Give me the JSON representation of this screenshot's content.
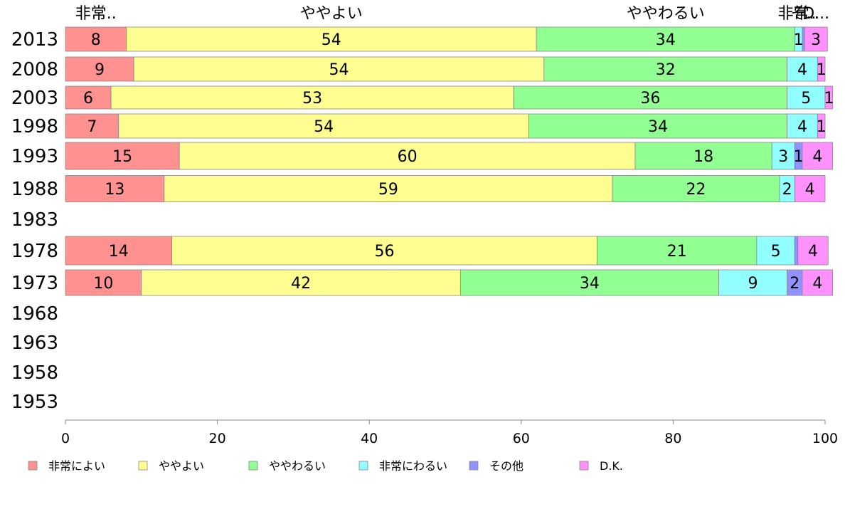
{
  "chart_data": {
    "type": "bar",
    "orientation": "horizontal",
    "stacked": true,
    "categories": [
      "2013",
      "2008",
      "2003",
      "1998",
      "1993",
      "1988",
      "1983",
      "1978",
      "1973",
      "1968",
      "1963",
      "1958",
      "1953"
    ],
    "series": [
      {
        "name": "非常によい",
        "color": "#ff9191",
        "values": [
          8,
          9,
          6,
          7,
          15,
          13,
          null,
          14,
          10,
          null,
          null,
          null,
          null
        ]
      },
      {
        "name": "ややよい",
        "color": "#ffff91",
        "values": [
          54,
          54,
          53,
          54,
          60,
          59,
          null,
          56,
          42,
          null,
          null,
          null,
          null
        ]
      },
      {
        "name": "ややわるい",
        "color": "#91ff91",
        "values": [
          34,
          32,
          36,
          34,
          18,
          22,
          null,
          21,
          34,
          null,
          null,
          null,
          null
        ]
      },
      {
        "name": "非常にわるい",
        "color": "#91ffff",
        "values": [
          1,
          4,
          5,
          4,
          3,
          2,
          null,
          5,
          9,
          null,
          null,
          null,
          null
        ]
      },
      {
        "name": "その他",
        "color": "#9191ff",
        "values": [
          0.3,
          0,
          0,
          0,
          1,
          0,
          null,
          0.4,
          2,
          null,
          null,
          null,
          null
        ]
      },
      {
        "name": "D.K.",
        "color": "#ff91ff",
        "values": [
          3,
          1,
          1,
          1,
          4,
          4,
          null,
          4,
          4,
          null,
          null,
          null,
          null
        ]
      }
    ],
    "top_labels": [
      "非常..",
      "ややよい",
      "ややわるい",
      "非常..",
      "そ..",
      "D..."
    ],
    "x_ticks": [
      0,
      20,
      40,
      60,
      80,
      100
    ],
    "xlim": [
      0,
      100
    ],
    "grid": false,
    "legend_position": "bottom"
  }
}
